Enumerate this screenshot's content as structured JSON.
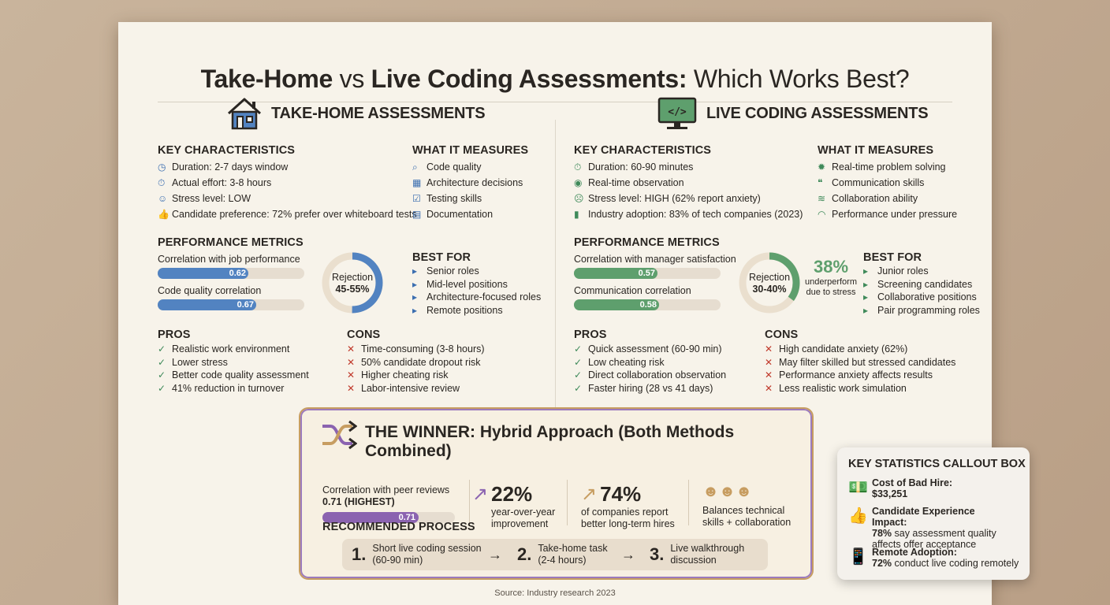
{
  "title": {
    "part1": "Take-Home",
    "part2": " vs ",
    "part3": "Live Coding Assessments:",
    "part4": " Which Works Best?"
  },
  "take_home": {
    "section_title": "TAKE-HOME ASSESSMENTS",
    "key_title": "KEY CHARACTERISTICS",
    "key": [
      {
        "icon": "clock-icon",
        "text": "Duration: 2-7 days window"
      },
      {
        "icon": "stopwatch-icon",
        "text": "Actual effort: 3-8 hours"
      },
      {
        "icon": "smile-icon",
        "text": "Stress level: LOW"
      },
      {
        "icon": "thumbs-up-icon",
        "text": "Candidate preference: 72% prefer over whiteboard tests"
      }
    ],
    "measures_title": "WHAT IT MEASURES",
    "measures": [
      {
        "icon": "magnifier-icon",
        "text": "Code quality"
      },
      {
        "icon": "blueprint-icon",
        "text": "Architecture decisions"
      },
      {
        "icon": "checkbox-icon",
        "text": "Testing skills"
      },
      {
        "icon": "document-icon",
        "text": "Documentation"
      }
    ],
    "perf_title": "PERFORMANCE METRICS",
    "metrics": [
      {
        "label": "Correlation with job performance",
        "value": "0.62",
        "fraction": 0.62
      },
      {
        "label": "Code quality correlation",
        "value": "0.67",
        "fraction": 0.67
      }
    ],
    "rejection": {
      "label": "Rejection",
      "value": "45-55%",
      "fraction": 0.5
    },
    "best_title": "BEST FOR",
    "best": [
      "Senior roles",
      "Mid-level positions",
      "Architecture-focused roles",
      "Remote positions"
    ],
    "pros_title": "PROS",
    "pros": [
      "Realistic work environment",
      "Lower stress",
      "Better code quality assessment",
      "41% reduction in turnover"
    ],
    "cons_title": "CONS",
    "cons": [
      "Time-consuming (3-8 hours)",
      "50% candidate dropout risk",
      "Higher cheating risk",
      "Labor-intensive review"
    ]
  },
  "live": {
    "section_title": "LIVE CODING ASSESSMENTS",
    "key_title": "KEY CHARACTERISTICS",
    "key": [
      {
        "icon": "stopwatch-icon",
        "text": "Duration: 60-90 minutes"
      },
      {
        "icon": "eye-icon",
        "text": "Real-time observation"
      },
      {
        "icon": "stressed-face-icon",
        "text": "Stress level: HIGH (62% report anxiety)"
      },
      {
        "icon": "bar-chart-icon",
        "text": "Industry adoption: 83% of tech companies (2023)"
      }
    ],
    "measures_title": "WHAT IT MEASURES",
    "measures": [
      {
        "icon": "lightbulb-icon",
        "text": "Real-time problem solving"
      },
      {
        "icon": "chat-bubbles-icon",
        "text": "Communication skills"
      },
      {
        "icon": "handshake-icon",
        "text": "Collaboration ability"
      },
      {
        "icon": "gauge-icon",
        "text": "Performance under pressure"
      }
    ],
    "perf_title": "PERFORMANCE METRICS",
    "metrics": [
      {
        "label": "Correlation with manager satisfaction",
        "value": "0.57",
        "fraction": 0.57
      },
      {
        "label": "Communication correlation",
        "value": "0.58",
        "fraction": 0.58
      }
    ],
    "rejection": {
      "label": "Rejection",
      "value": "30-40%",
      "fraction": 0.35
    },
    "stat": {
      "value": "38%",
      "line1": "underperform",
      "line2": "due to stress"
    },
    "best_title": "BEST FOR",
    "best": [
      "Junior roles",
      "Screening candidates",
      "Collaborative positions",
      "Pair programming roles"
    ],
    "pros_title": "PROS",
    "pros": [
      "Quick assessment (60-90 min)",
      "Low cheating risk",
      "Direct collaboration observation",
      "Faster hiring (28 vs 41 days)"
    ],
    "cons_title": "CONS",
    "cons": [
      "High candidate anxiety (62%)",
      "May filter skilled but stressed candidates",
      "Performance anxiety affects results",
      "Less realistic work simulation"
    ]
  },
  "winner": {
    "title": "THE WINNER: Hybrid Approach (Both Methods Combined)",
    "corr_label": "Correlation with peer reviews",
    "corr_value_text": "0.71 (HIGHEST)",
    "corr_value": "0.71",
    "corr_fraction": 0.71,
    "stat1": {
      "value": "22%",
      "line1": "year-over-year",
      "line2": "improvement"
    },
    "stat2": {
      "value": "74%",
      "line1": "of companies report",
      "line2": "better long-term hires"
    },
    "stat3": {
      "line1": "Balances technical",
      "line2": "skills + collaboration"
    },
    "process_title": "RECOMMENDED PROCESS",
    "steps": [
      {
        "num": "1.",
        "line1": "Short live coding session",
        "line2": "(60-90 min)"
      },
      {
        "num": "2.",
        "line1": "Take-home task",
        "line2": "(2-4 hours)"
      },
      {
        "num": "3.",
        "line1": "Live walkthrough",
        "line2": "discussion"
      }
    ]
  },
  "callout": {
    "title": "KEY STATISTICS CALLOUT BOX",
    "items": [
      {
        "icon": "dollar-bill-icon",
        "label": "Cost of Bad Hire:",
        "bold2": "$33,251",
        "rest": ""
      },
      {
        "icon": "thumbs-up-icon",
        "label": "Candidate Experience Impact:",
        "bold2": "78%",
        "rest": " say assessment quality affects offer acceptance"
      },
      {
        "icon": "remote-device-icon",
        "label": "Remote Adoption:",
        "bold2": "72%",
        "rest": " conduct live coding remotely"
      }
    ]
  },
  "source": "Source: Industry research 2023",
  "colors": {
    "blue": "#5283c1",
    "green": "#5e9f6d",
    "purple": "#8b63b0",
    "gold": "#c79d61"
  }
}
